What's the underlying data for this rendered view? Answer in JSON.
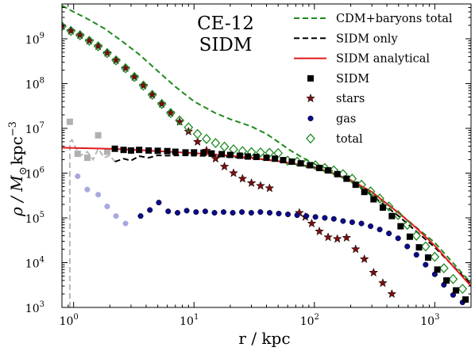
{
  "chart_data": {
    "type": "scatter",
    "title_lines": [
      "CE-12",
      "SIDM"
    ],
    "xlabel": "r / kpc",
    "ylabel_parts": {
      "rho": "ρ / M",
      "sun": "⊙",
      "kpc": "kpc",
      "exp": "−3"
    },
    "x_scale": "log",
    "y_scale": "log",
    "xlim": [
      0.8,
      2000
    ],
    "ylim": [
      1000,
      6000000000
    ],
    "x_ticks": [
      {
        "value": 1,
        "base": "10",
        "exp": "0"
      },
      {
        "value": 10,
        "base": "10",
        "exp": "1"
      },
      {
        "value": 100,
        "base": "10",
        "exp": "2"
      },
      {
        "value": 1000,
        "base": "10",
        "exp": "3"
      }
    ],
    "y_ticks": [
      {
        "value": 1000,
        "base": "10",
        "exp": "3"
      },
      {
        "value": 10000,
        "base": "10",
        "exp": "4"
      },
      {
        "value": 100000,
        "base": "10",
        "exp": "5"
      },
      {
        "value": 1000000,
        "base": "10",
        "exp": "6"
      },
      {
        "value": 10000000,
        "base": "10",
        "exp": "7"
      },
      {
        "value": 100000000,
        "base": "10",
        "exp": "8"
      },
      {
        "value": 1000000000,
        "base": "10",
        "exp": "9"
      }
    ],
    "legend_position": "top-right",
    "series": [
      {
        "name": "CDM+baryons total",
        "kind": "line",
        "style": "dashed",
        "color": "#1f8a1f",
        "x": [
          0.8,
          1.0,
          1.3,
          1.8,
          2.5,
          3.5,
          5,
          7,
          10,
          15,
          20,
          30,
          40,
          50,
          60,
          80,
          100,
          150,
          200,
          300,
          500,
          1000,
          2000
        ],
        "y": [
          5500000000.0,
          4000000000.0,
          2800000000.0,
          1700000000.0,
          900000000.0,
          450000000.0,
          190000000.0,
          85000000.0,
          40000000.0,
          22000000.0,
          16000000.0,
          11000000.0,
          7500000.0,
          5000000.0,
          3500000.0,
          2200000.0,
          1600000.0,
          1050000.0,
          700000.0,
          350000.0,
          130000.0,
          28000.0,
          3500.0
        ]
      },
      {
        "name": "SIDM only",
        "kind": "line",
        "style": "dashed",
        "color": "#000000",
        "x": [
          2.2,
          2.6,
          3.0,
          3.5,
          4.2,
          5,
          6,
          8,
          10,
          15,
          20,
          30,
          50,
          70,
          100,
          150,
          200,
          300,
          500,
          1000,
          2000
        ],
        "y": [
          1800000.0,
          2100000.0,
          1900000.0,
          2400000.0,
          2200000.0,
          2500000.0,
          2450000.0,
          2500000.0,
          2450000.0,
          2400000.0,
          2300000.0,
          2150000.0,
          1850000.0,
          1600000.0,
          1350000.0,
          950000.0,
          650000.0,
          320000.0,
          110000.0,
          22000.0,
          3300.0
        ]
      },
      {
        "name": "SIDM analytical",
        "kind": "line",
        "style": "solid",
        "color": "#e31a1c",
        "x": [
          0.8,
          1,
          2,
          3,
          5,
          10,
          20,
          30,
          50,
          70,
          100,
          150,
          200,
          300,
          500,
          700,
          1000,
          1500,
          2000
        ],
        "y": [
          3700000.0,
          3650000.0,
          3500000.0,
          3350000.0,
          3100000.0,
          2800000.0,
          2450000.0,
          2200000.0,
          1850000.0,
          1600000.0,
          1300000.0,
          950000.0,
          700000.0,
          380000.0,
          130000.0,
          60000.0,
          24000.0,
          7000.0,
          3000.0
        ]
      },
      {
        "name": "SIDM",
        "kind": "marker",
        "marker": "square",
        "color": "#000000",
        "x": [
          2.2,
          2.6,
          3.0,
          3.5,
          4.2,
          5,
          6,
          7,
          8.5,
          10,
          12,
          14,
          17,
          20,
          24,
          28,
          33,
          40,
          47,
          55,
          65,
          77,
          92,
          110,
          130,
          155,
          185,
          220,
          260,
          310,
          370,
          440,
          520,
          620,
          740,
          880,
          1050,
          1250,
          1500,
          1800
        ],
        "y": [
          3500000.0,
          3300000.0,
          3200000.0,
          3300000.0,
          3200000.0,
          3150000.0,
          3100000.0,
          3000000.0,
          2900000.0,
          2900000.0,
          2850000.0,
          2750000.0,
          2650000.0,
          2550000.0,
          2450000.0,
          2350000.0,
          2300000.0,
          2200000.0,
          2100000.0,
          1950000.0,
          1800000.0,
          1650000.0,
          1500000.0,
          1300000.0,
          1150000.0,
          950000.0,
          750000.0,
          550000.0,
          380000.0,
          260000.0,
          170000.0,
          110000.0,
          65000.0,
          38000.0,
          22000.0,
          13000.0,
          7000.0,
          4000.0,
          2400.0,
          1500.0
        ]
      },
      {
        "name": "stars",
        "kind": "marker",
        "marker": "star",
        "color": "#7a1010",
        "x": [
          0.8,
          0.95,
          1.13,
          1.35,
          1.6,
          1.9,
          2.25,
          2.7,
          3.2,
          3.8,
          4.5,
          5.4,
          6.4,
          7.6,
          9.0,
          10.7,
          12.7,
          15.1,
          17.9,
          21.3,
          25.3,
          30,
          35.7,
          42.4,
          75,
          84,
          95,
          110,
          130,
          155,
          185,
          220,
          260,
          310,
          370,
          440
        ],
        "y": [
          1900000000.0,
          1500000000.0,
          1200000000.0,
          900000000.0,
          680000000.0,
          480000000.0,
          330000000.0,
          220000000.0,
          140000000.0,
          90000000.0,
          56000000.0,
          35000000.0,
          22000000.0,
          14000000.0,
          8500000.0,
          5000000.0,
          3200000.0,
          2100000.0,
          1400000.0,
          1000000.0,
          750000.0,
          600000.0,
          520000.0,
          460000.0,
          130000.0,
          105000.0,
          75000.0,
          50000.0,
          37000.0,
          34000.0,
          36000.0,
          20000.0,
          12000.0,
          6000.0,
          3500.0,
          2000.0
        ]
      },
      {
        "name": "gas",
        "kind": "marker",
        "marker": "circle",
        "color": "#0b0b8c",
        "x": [
          3.6,
          4.3,
          5.1,
          6.1,
          7.3,
          8.7,
          10.4,
          12.4,
          14.8,
          17.6,
          21,
          25,
          29.9,
          35.6,
          42.5,
          50.6,
          60.3,
          71.9,
          85.7,
          102,
          122,
          145,
          173,
          206,
          246,
          293,
          349,
          416,
          496,
          591,
          704,
          839,
          1000,
          1190,
          1420,
          1700
        ],
        "y": [
          110000.0,
          150000.0,
          220000.0,
          140000.0,
          130000.0,
          145000.0,
          135000.0,
          140000.0,
          130000.0,
          135000.0,
          130000.0,
          135000.0,
          130000.0,
          135000.0,
          130000.0,
          125000.0,
          120000.0,
          115000.0,
          110000.0,
          105000.0,
          100000.0,
          95000.0,
          85000.0,
          80000.0,
          75000.0,
          65000.0,
          55000.0,
          45000.0,
          35000.0,
          23000.0,
          15000.0,
          9000.0,
          5500.0,
          3200.0,
          1900.0,
          1300.0
        ]
      },
      {
        "name": "total",
        "kind": "marker",
        "marker": "diamond",
        "color": "#1f8a1f",
        "x": [
          0.8,
          0.95,
          1.13,
          1.35,
          1.6,
          1.9,
          2.25,
          2.7,
          3.2,
          3.8,
          4.5,
          5.4,
          6.4,
          7.6,
          9.0,
          10.7,
          12.7,
          15.1,
          17.9,
          21.3,
          25.3,
          30,
          35.7,
          42.4,
          50,
          60,
          72,
          86,
          102,
          122,
          145,
          173,
          206,
          246,
          293,
          349,
          416,
          496,
          591,
          704,
          839,
          1000,
          1190,
          1420,
          1700
        ],
        "y": [
          1900000000.0,
          1500000000.0,
          1200000000.0,
          900000000.0,
          680000000.0,
          480000000.0,
          330000000.0,
          220000000.0,
          140000000.0,
          90000000.0,
          56000000.0,
          35000000.0,
          22000000.0,
          15000000.0,
          10500000.0,
          7500000.0,
          5800000.0,
          4700000.0,
          3900000.0,
          3400000.0,
          3100000.0,
          2950000.0,
          2900000.0,
          2850000.0,
          2800000.0,
          1900000.0,
          1800000.0,
          1650000.0,
          1500000.0,
          1300000.0,
          1150000.0,
          950000.0,
          750000.0,
          550000.0,
          390000.0,
          270000.0,
          180000.0,
          115000.0,
          70000.0,
          40000.0,
          23000.0,
          13500.0,
          7500.0,
          4300.0,
          2600.0
        ]
      },
      {
        "name": "",
        "kind": "line",
        "style": "dashed",
        "color": "#b8b8b8",
        "faded": true,
        "x": [
          0.93,
          0.93,
          0.97,
          1.05,
          1.15,
          1.3,
          1.45,
          1.6,
          1.8,
          2.0,
          2.2
        ],
        "y": [
          1000,
          5000000.0,
          5500000.0,
          3500000.0,
          2500000.0,
          3000000.0,
          2000000.0,
          3500000.0,
          2200000.0,
          2500000.0,
          1800000.0
        ]
      },
      {
        "name": "",
        "kind": "marker",
        "marker": "square",
        "color": "#b0b0b0",
        "faded": true,
        "x": [
          0.93,
          1.08,
          1.3,
          1.6,
          1.9
        ],
        "y": [
          14000000.0,
          2700000.0,
          2200000.0,
          7000000.0,
          3000000.0
        ]
      },
      {
        "name": "",
        "kind": "marker",
        "marker": "circle",
        "color": "#a8a8e0",
        "faded": true,
        "x": [
          1.08,
          1.3,
          1.6,
          1.9,
          2.25,
          2.7
        ],
        "y": [
          850000.0,
          430000.0,
          330000.0,
          180000.0,
          110000.0,
          75000.0
        ]
      }
    ]
  }
}
